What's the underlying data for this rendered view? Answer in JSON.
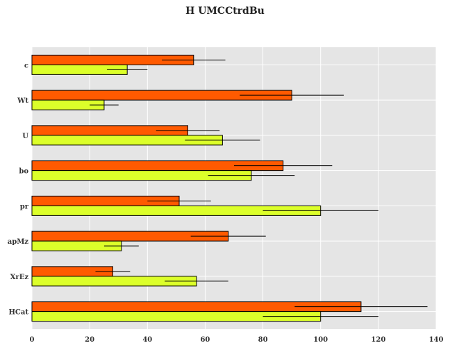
{
  "chart_data": {
    "type": "bar",
    "orientation": "horizontal",
    "title": "H UMCCtrdBu",
    "xlabel": "",
    "ylabel": "",
    "xlim": [
      0,
      140
    ],
    "x_ticks": [
      0,
      20,
      40,
      60,
      80,
      100,
      120,
      140
    ],
    "grid": true,
    "categories": [
      "c",
      "Wt",
      "U",
      "bo",
      "pr",
      "apMz",
      "XrEz",
      "HCat"
    ],
    "series": [
      {
        "color": "#ff5a00",
        "values": [
          56,
          90,
          54,
          87,
          51,
          68,
          28,
          114
        ],
        "errors": [
          11,
          18,
          11,
          17,
          11,
          13,
          6,
          23
        ]
      },
      {
        "color": "#dcff2a",
        "values": [
          33,
          25,
          66,
          76,
          100,
          31,
          57,
          100
        ],
        "errors": [
          7,
          5,
          13,
          15,
          20,
          6,
          11,
          20
        ]
      }
    ],
    "background": "#e5e5e5",
    "edge_color": "#000000"
  }
}
